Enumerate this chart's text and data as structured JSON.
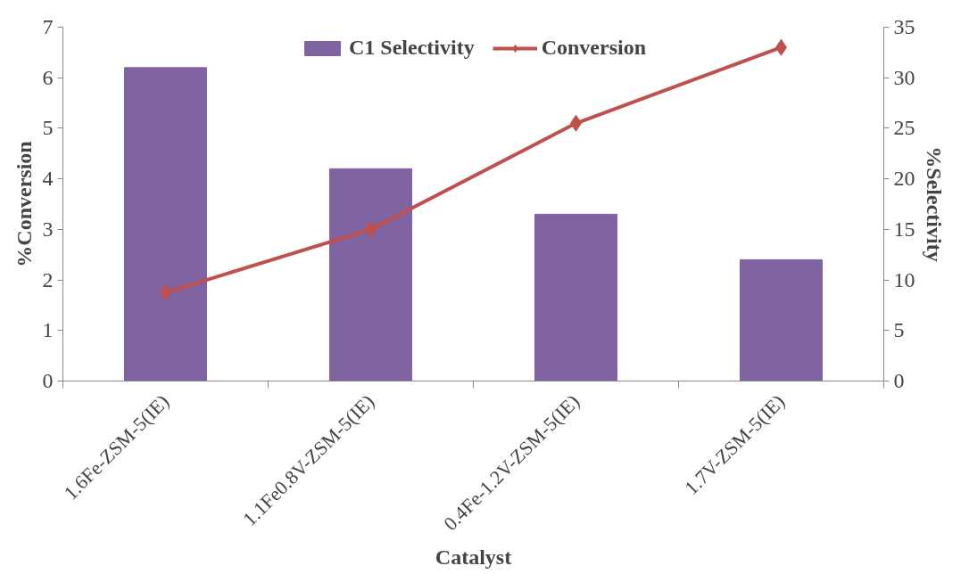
{
  "chart_data": {
    "type": "bar",
    "xlabel": "Catalyst",
    "ylabel": "%Conversion",
    "y2label": "%Selectivity",
    "categories": [
      "1.6Fe-ZSM-5(IE)",
      "1.1Fe0.8V-ZSM-5(IE)",
      "0.4Fe-1.2V-ZSM-5(IE)",
      "1.7V-ZSM-5(IE)"
    ],
    "series": [
      {
        "name": "C1 Selectivity",
        "axis": "y2",
        "color": "#8064a2",
        "values": [
          31,
          21,
          16.5,
          12
        ]
      },
      {
        "name": "Conversion",
        "type": "line",
        "color": "#c0504d",
        "marker": "diamond",
        "values": [
          1.75,
          3.0,
          5.1,
          6.6
        ]
      }
    ],
    "ylim": [
      0,
      7
    ],
    "yticks": [
      0,
      1,
      2,
      3,
      4,
      5,
      6,
      7
    ],
    "y2lim": [
      0,
      35
    ],
    "y2ticks": [
      0,
      5,
      10,
      15,
      20,
      25,
      30,
      35
    ],
    "legend": "top"
  }
}
